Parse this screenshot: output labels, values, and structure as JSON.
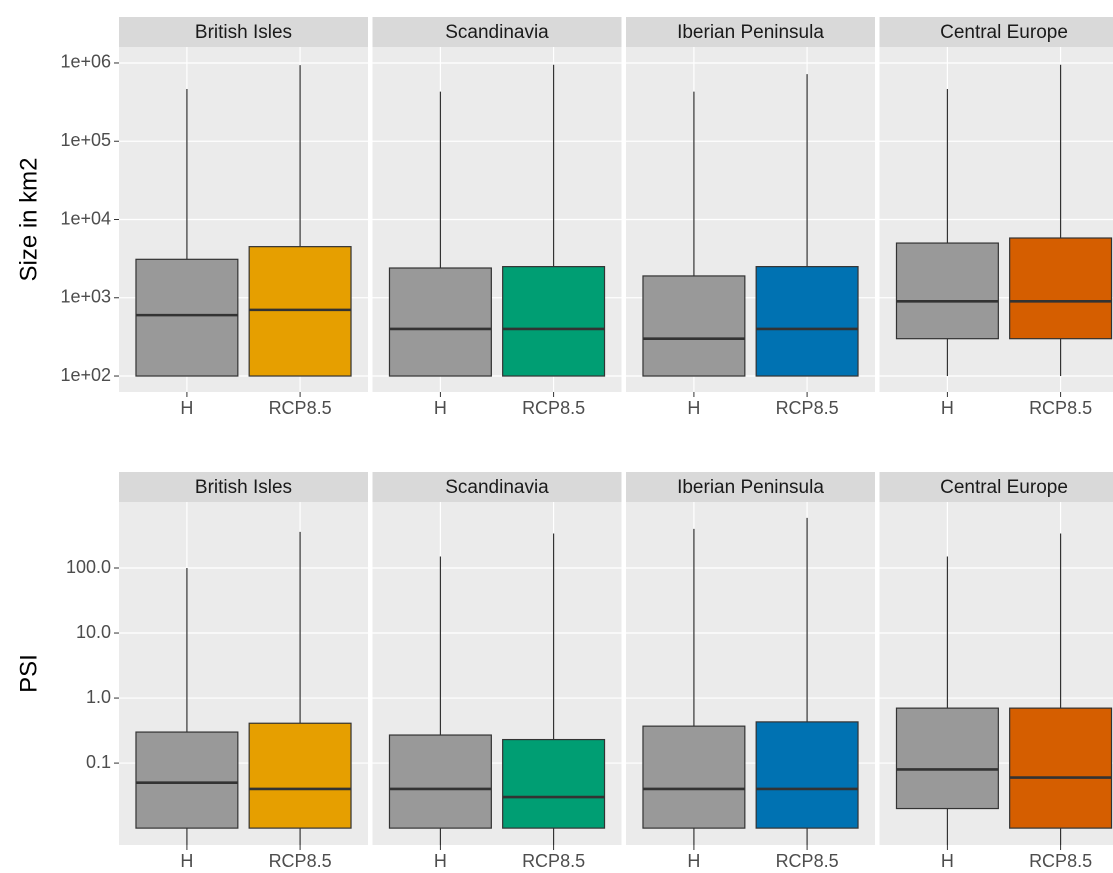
{
  "chart_data": [
    {
      "type": "boxplot",
      "ylabel": "Size in km2",
      "log_y": true,
      "grid": true,
      "ylim": [
        62.5,
        1600000
      ],
      "yticks": [
        {
          "value": 100,
          "label": "1e+02"
        },
        {
          "value": 1000,
          "label": "1e+03"
        },
        {
          "value": 10000,
          "label": "1e+04"
        },
        {
          "value": 100000,
          "label": "1e+05"
        },
        {
          "value": 1000000,
          "label": "1e+06"
        }
      ],
      "categories": [
        "H",
        "RCP8.5"
      ],
      "facets": [
        {
          "title": "British Isles",
          "colors": [
            "#999999",
            "#E69F00"
          ],
          "boxes": [
            {
              "min": 100,
              "q1": 100,
              "median": 600,
              "q3": 3100,
              "max": 465000
            },
            {
              "min": 100,
              "q1": 100,
              "median": 700,
              "q3": 4500,
              "max": 940000
            }
          ]
        },
        {
          "title": "Scandinavia",
          "colors": [
            "#999999",
            "#009E73"
          ],
          "boxes": [
            {
              "min": 100,
              "q1": 100,
              "median": 400,
              "q3": 2400,
              "max": 430000
            },
            {
              "min": 100,
              "q1": 100,
              "median": 400,
              "q3": 2500,
              "max": 950000
            }
          ]
        },
        {
          "title": "Iberian Peninsula",
          "colors": [
            "#999999",
            "#0072B2"
          ],
          "boxes": [
            {
              "min": 100,
              "q1": 100,
              "median": 300,
              "q3": 1900,
              "max": 430000
            },
            {
              "min": 100,
              "q1": 100,
              "median": 400,
              "q3": 2500,
              "max": 720000
            }
          ]
        },
        {
          "title": "Central Europe",
          "colors": [
            "#999999",
            "#D55E00"
          ],
          "boxes": [
            {
              "min": 100,
              "q1": 300,
              "median": 900,
              "q3": 5000,
              "max": 465000
            },
            {
              "min": 100,
              "q1": 300,
              "median": 900,
              "q3": 5800,
              "max": 950000
            }
          ]
        }
      ]
    },
    {
      "type": "boxplot",
      "ylabel": "PSI",
      "log_y": true,
      "grid": true,
      "ylim": [
        0.0055,
        1035
      ],
      "yticks": [
        {
          "value": 0.1,
          "label": "0.1"
        },
        {
          "value": 1,
          "label": "1.0"
        },
        {
          "value": 10,
          "label": "10.0"
        },
        {
          "value": 100,
          "label": "100.0"
        }
      ],
      "categories": [
        "H",
        "RCP8.5"
      ],
      "facets": [
        {
          "title": "British Isles",
          "colors": [
            "#999999",
            "#E69F00"
          ],
          "boxes": [
            {
              "min": 0.001,
              "q1": 0.01,
              "median": 0.05,
              "q3": 0.3,
              "max": 100
            },
            {
              "min": 0.001,
              "q1": 0.01,
              "median": 0.04,
              "q3": 0.41,
              "max": 360
            }
          ]
        },
        {
          "title": "Scandinavia",
          "colors": [
            "#999999",
            "#009E73"
          ],
          "boxes": [
            {
              "min": 0.001,
              "q1": 0.01,
              "median": 0.04,
              "q3": 0.27,
              "max": 150
            },
            {
              "min": 0.001,
              "q1": 0.01,
              "median": 0.03,
              "q3": 0.23,
              "max": 340
            }
          ]
        },
        {
          "title": "Iberian Peninsula",
          "colors": [
            "#999999",
            "#0072B2"
          ],
          "boxes": [
            {
              "min": 0.001,
              "q1": 0.01,
              "median": 0.04,
              "q3": 0.37,
              "max": 400
            },
            {
              "min": 0.001,
              "q1": 0.01,
              "median": 0.04,
              "q3": 0.43,
              "max": 590
            }
          ]
        },
        {
          "title": "Central Europe",
          "colors": [
            "#999999",
            "#D55E00"
          ],
          "boxes": [
            {
              "min": 0.001,
              "q1": 0.02,
              "median": 0.08,
              "q3": 0.7,
              "max": 150
            },
            {
              "min": 0.001,
              "q1": 0.01,
              "median": 0.06,
              "q3": 0.7,
              "max": 340
            }
          ]
        }
      ]
    }
  ]
}
